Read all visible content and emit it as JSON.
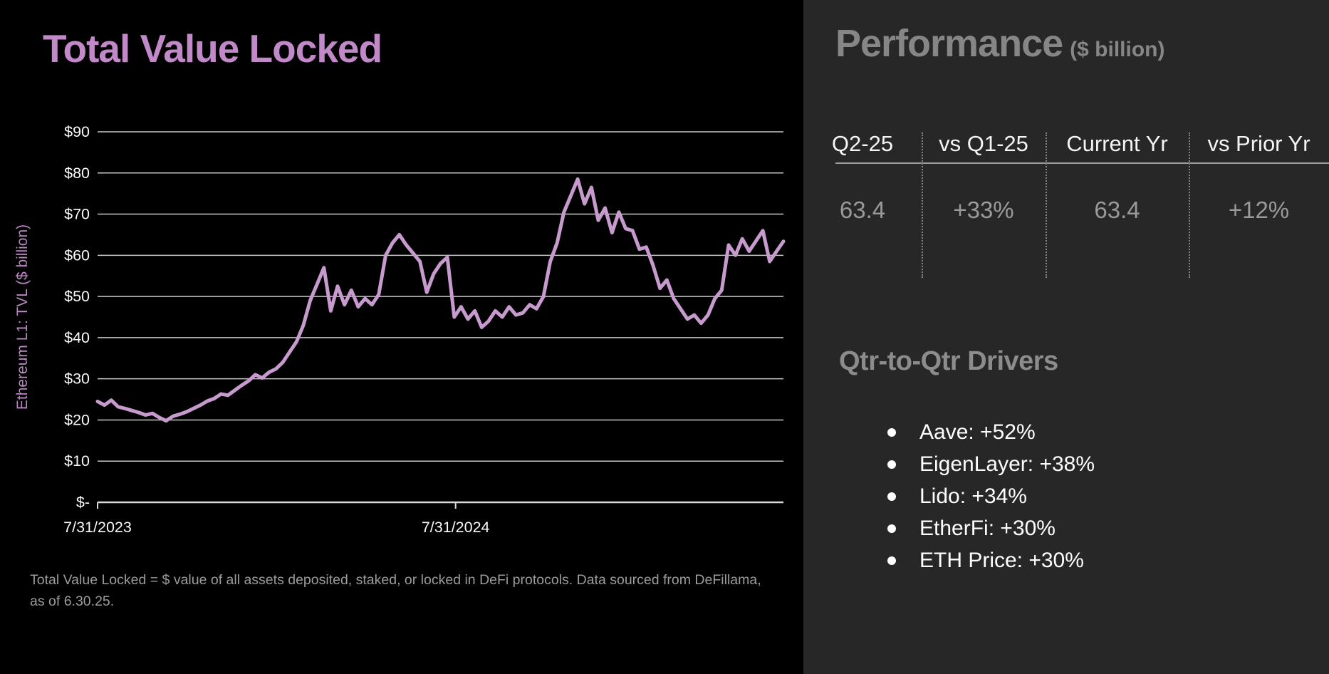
{
  "left": {
    "title": "Total Value Locked",
    "footnote": "Total Value Locked = $ value of all assets deposited, staked, or locked in DeFi protocols. Data sourced from DeFillama, as of 6.30.25."
  },
  "chart_data": {
    "type": "line",
    "title": "Total Value Locked",
    "ylabel": "Ethereum L1: TVL ($ billion)",
    "ylim": [
      0,
      90
    ],
    "grid": true,
    "x_range": [
      "7/31/2023",
      "6/30/2025"
    ],
    "sampling": "weekly",
    "y_axis": {
      "ticks": [
        {
          "value": 90,
          "label": "$90"
        },
        {
          "value": 80,
          "label": "$80"
        },
        {
          "value": 70,
          "label": "$70"
        },
        {
          "value": 60,
          "label": "$60"
        },
        {
          "value": 50,
          "label": "$50"
        },
        {
          "value": 40,
          "label": "$40"
        },
        {
          "value": 30,
          "label": "$30"
        },
        {
          "value": 20,
          "label": "$20"
        },
        {
          "value": 10,
          "label": "$10"
        },
        {
          "value": 0,
          "label": "$-"
        }
      ]
    },
    "x_axis": {
      "ticks": [
        {
          "label": "7/31/2023",
          "frac": 0.0
        },
        {
          "label": "7/31/2024",
          "frac": 0.522
        }
      ]
    },
    "series": [
      {
        "name": "Ethereum L1 TVL ($ billion)",
        "values": [
          24.5,
          23.6,
          24.8,
          23.2,
          22.8,
          22.3,
          21.8,
          21.2,
          21.6,
          20.6,
          19.8,
          20.9,
          21.4,
          22.0,
          22.8,
          23.6,
          24.6,
          25.2,
          26.3,
          26.0,
          27.2,
          28.4,
          29.5,
          31.0,
          30.2,
          31.6,
          32.4,
          34.0,
          36.5,
          39.0,
          43.0,
          49.0,
          53.0,
          57.0,
          46.5,
          52.5,
          48.0,
          51.5,
          47.5,
          49.5,
          48.0,
          50.5,
          60.0,
          63.0,
          65.0,
          62.5,
          60.5,
          58.5,
          51.0,
          55.5,
          58.0,
          59.5,
          45.0,
          47.5,
          44.5,
          46.5,
          42.5,
          44.0,
          46.5,
          45.0,
          47.5,
          45.5,
          46.0,
          48.0,
          47.0,
          50.0,
          58.5,
          63.0,
          70.5,
          74.5,
          78.5,
          72.5,
          76.5,
          68.5,
          71.5,
          65.5,
          70.5,
          66.5,
          66.0,
          61.5,
          62.0,
          57.5,
          52.0,
          54.0,
          49.5,
          47.0,
          44.5,
          45.5,
          43.5,
          45.5,
          49.5,
          51.5,
          62.5,
          60.0,
          64.0,
          61.0,
          63.5,
          66.0,
          58.5,
          61.0,
          63.4
        ]
      }
    ]
  },
  "performance": {
    "heading": "Performance",
    "unit": "($ billion)",
    "columns": [
      "Q2-25",
      "vs Q1-25",
      "Current Yr",
      "vs Prior Yr"
    ],
    "values": [
      "63.4",
      "+33%",
      "63.4",
      "+12%"
    ]
  },
  "drivers": {
    "heading": "Qtr-to-Qtr Drivers",
    "items": [
      "Aave: +52%",
      "EigenLayer: +38%",
      "Lido: +34%",
      "EtherFi: +30%",
      "ETH Price: +30%"
    ]
  },
  "colors": {
    "title_purple": "#c289c8",
    "axis_title_purple": "#bd86c4",
    "line_purple": "#c79bce",
    "gridline": "#c8c8c8",
    "axis": "#d9d9d9",
    "tick_text": "#fafafa",
    "panel_bg": "#272727",
    "left_bg": "#000000",
    "heading_gray": "#868686",
    "value_gray": "#9a9a9a",
    "footnote_gray": "#9b9b9b",
    "bullet_text": "#ffffff"
  }
}
